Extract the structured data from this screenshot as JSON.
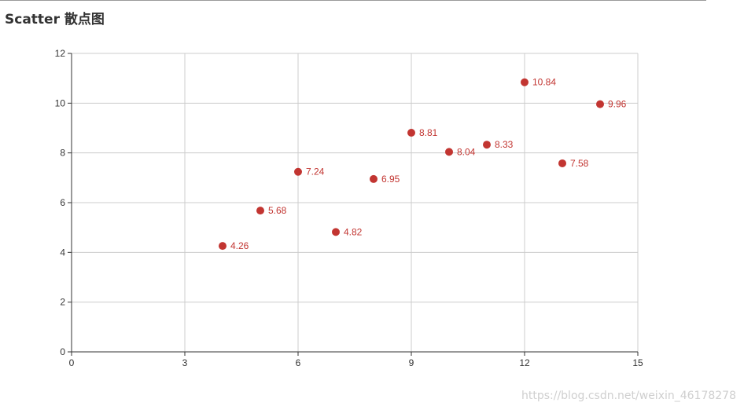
{
  "colors": {
    "point": "#c23531",
    "grid": "#cccccc",
    "axis": "#333333",
    "text": "#333333"
  },
  "watermark": "https://blog.csdn.net/weixin_46178278",
  "chart_data": {
    "type": "scatter",
    "title": "Scatter 散点图",
    "xlabel": "",
    "ylabel": "",
    "xlim": [
      0,
      15
    ],
    "ylim": [
      0,
      12
    ],
    "xticks": [
      0,
      3,
      6,
      9,
      12,
      15
    ],
    "yticks": [
      0,
      2,
      4,
      6,
      8,
      10,
      12
    ],
    "grid": true,
    "legend": "none",
    "series": [
      {
        "points": [
          {
            "x": 10,
            "y": 8.04,
            "label": "8.04"
          },
          {
            "x": 8,
            "y": 6.95,
            "label": "6.95"
          },
          {
            "x": 13,
            "y": 7.58,
            "label": "7.58"
          },
          {
            "x": 9,
            "y": 8.81,
            "label": "8.81"
          },
          {
            "x": 11,
            "y": 8.33,
            "label": "8.33"
          },
          {
            "x": 14,
            "y": 9.96,
            "label": "9.96"
          },
          {
            "x": 6,
            "y": 7.24,
            "label": "7.24"
          },
          {
            "x": 4,
            "y": 4.26,
            "label": "4.26"
          },
          {
            "x": 12,
            "y": 10.84,
            "label": "10.84"
          },
          {
            "x": 7,
            "y": 4.82,
            "label": "4.82"
          },
          {
            "x": 5,
            "y": 5.68,
            "label": "5.68"
          }
        ]
      }
    ]
  }
}
